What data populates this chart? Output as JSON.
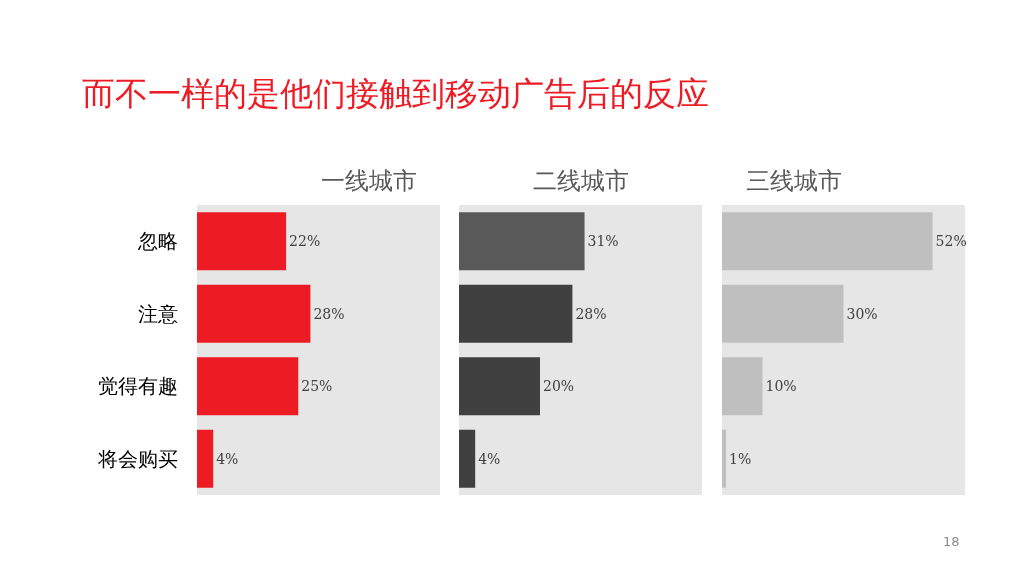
{
  "chart_data": [
    {
      "type": "bar",
      "orientation": "horizontal",
      "title": "一线城市",
      "annotations": [
        "而不一样的是他们接触到移动广告后的反应"
      ],
      "categories": [
        "忽略",
        "注意",
        "觉得有趣",
        "将会购买"
      ],
      "values": [
        22,
        28,
        25,
        4
      ],
      "value_labels": [
        "22%",
        "28%",
        "25%",
        "4%"
      ],
      "colors": [
        "#ed1c24",
        "#ed1c24",
        "#ed1c24",
        "#ed1c24"
      ],
      "xlim": [
        0,
        60
      ]
    },
    {
      "type": "bar",
      "orientation": "horizontal",
      "title": "二线城市",
      "categories": [
        null,
        null,
        null,
        null
      ],
      "values": [
        31,
        28,
        20,
        4
      ],
      "value_labels": [
        "31%",
        "28%",
        "20%",
        "4%"
      ],
      "colors": [
        "#595959",
        "#404040",
        "#404040",
        "#404040"
      ],
      "xlim": [
        0,
        60
      ]
    },
    {
      "type": "bar",
      "orientation": "horizontal",
      "title": "三线城市",
      "annotations": [
        "18"
      ],
      "categories": [
        null,
        null,
        null,
        null
      ],
      "values": [
        52,
        30,
        10,
        1
      ],
      "value_labels": [
        "52%",
        "30%",
        "10%",
        "1%"
      ],
      "colors": [
        "#bfbfbf",
        "#bfbfbf",
        "#bfbfbf",
        "#bfbfbf"
      ],
      "xlim": [
        0,
        60
      ]
    }
  ]
}
